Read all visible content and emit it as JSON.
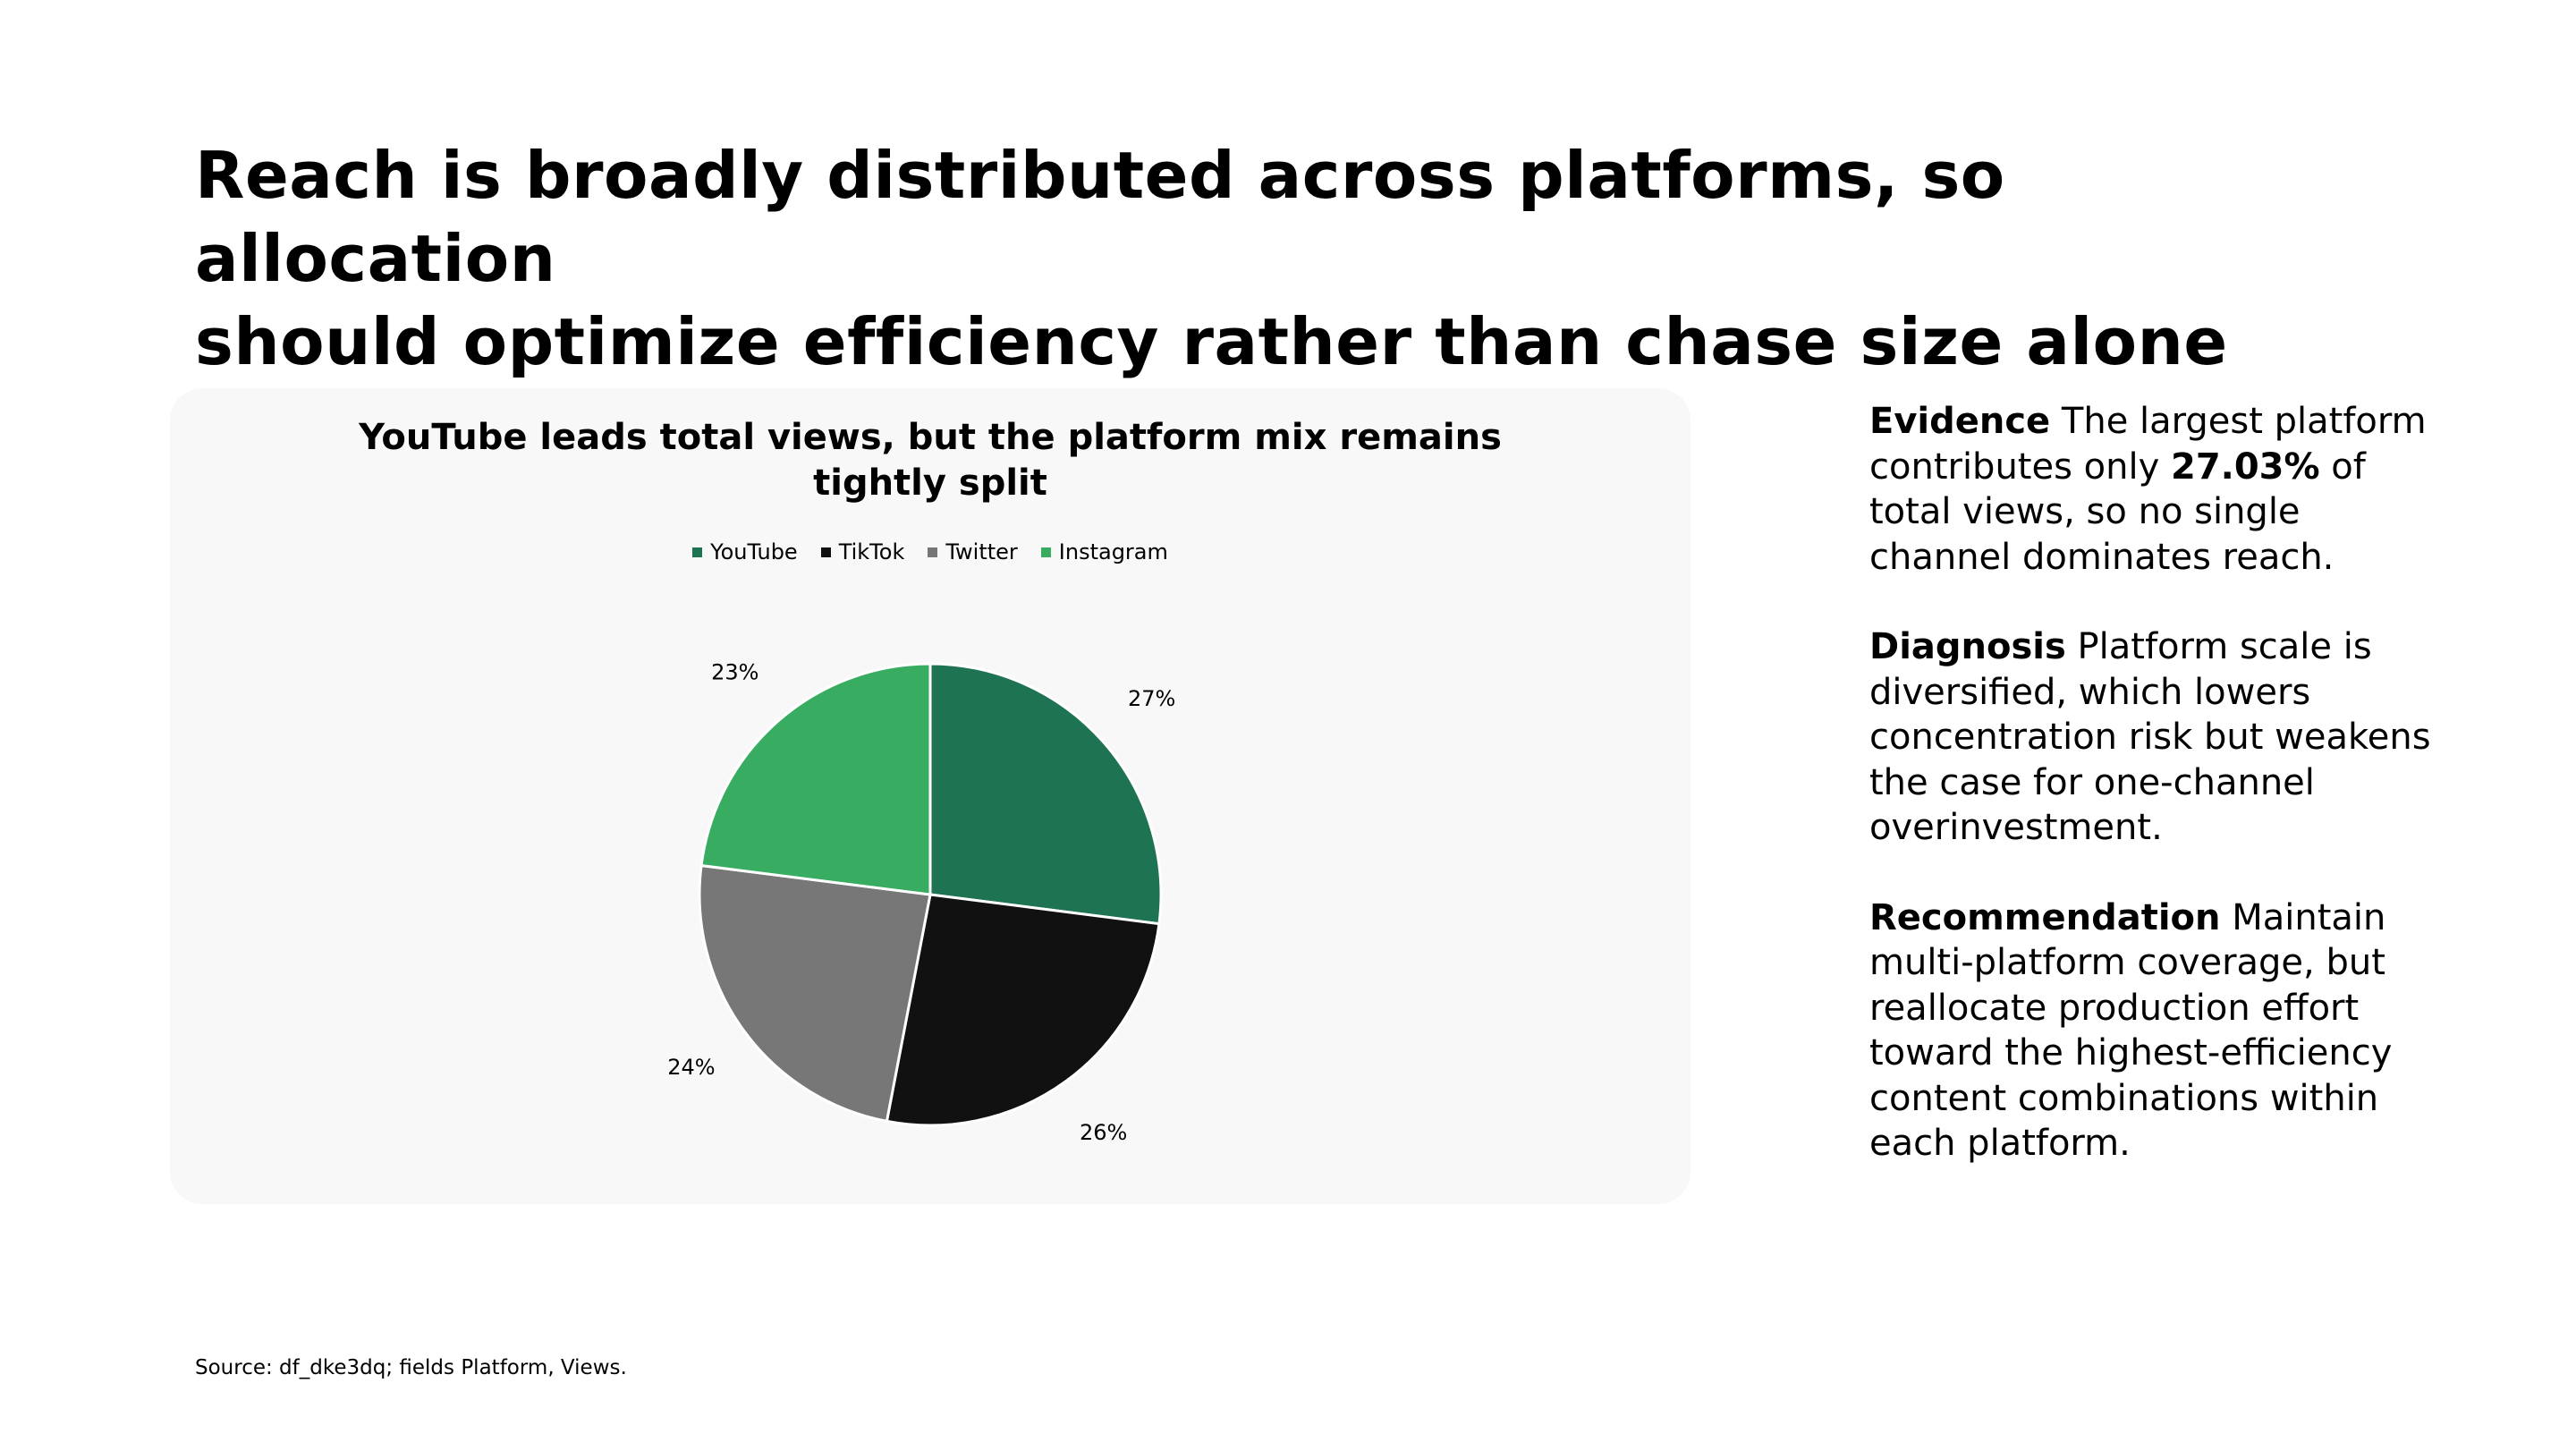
{
  "slide": {
    "headline_line1": "Reach is broadly distributed across platforms, so allocation",
    "headline_line2": "should optimize efficiency rather than chase size alone",
    "source": "Source: df_dke3dq; fields Platform, Views."
  },
  "panel": {
    "evidence_label": "Evidence",
    "evidence_pre": " The largest platform contributes only ",
    "evidence_highlight": "27.03%",
    "evidence_post": " of total views, so no single channel dominates reach.",
    "diagnosis_label": "Diagnosis",
    "diagnosis_text": " Platform scale is diversified, which lowers concentration risk but weakens the case for one-channel overinvestment.",
    "recommendation_label": "Recommendation",
    "recommendation_text": " Maintain multi-platform coverage, but reallocate production effort toward the highest-efficiency content combinations within each platform."
  },
  "chart_data": {
    "type": "pie",
    "title_line1": "YouTube leads total views, but the platform mix remains",
    "title_line2": "tightly split",
    "legend_position": "top",
    "categories": [
      "YouTube",
      "TikTok",
      "Twitter",
      "Instagram"
    ],
    "values": [
      27.03,
      26.0,
      24.0,
      23.0
    ],
    "labels": [
      "27%",
      "26%",
      "24%",
      "23%"
    ],
    "colors": [
      "#1e7352",
      "#111111",
      "#777777",
      "#38ad62"
    ],
    "legend_labels": [
      "YouTube",
      "TikTok",
      "Twitter",
      "Instagram"
    ],
    "start_angle_deg": 90,
    "direction": "clockwise"
  }
}
